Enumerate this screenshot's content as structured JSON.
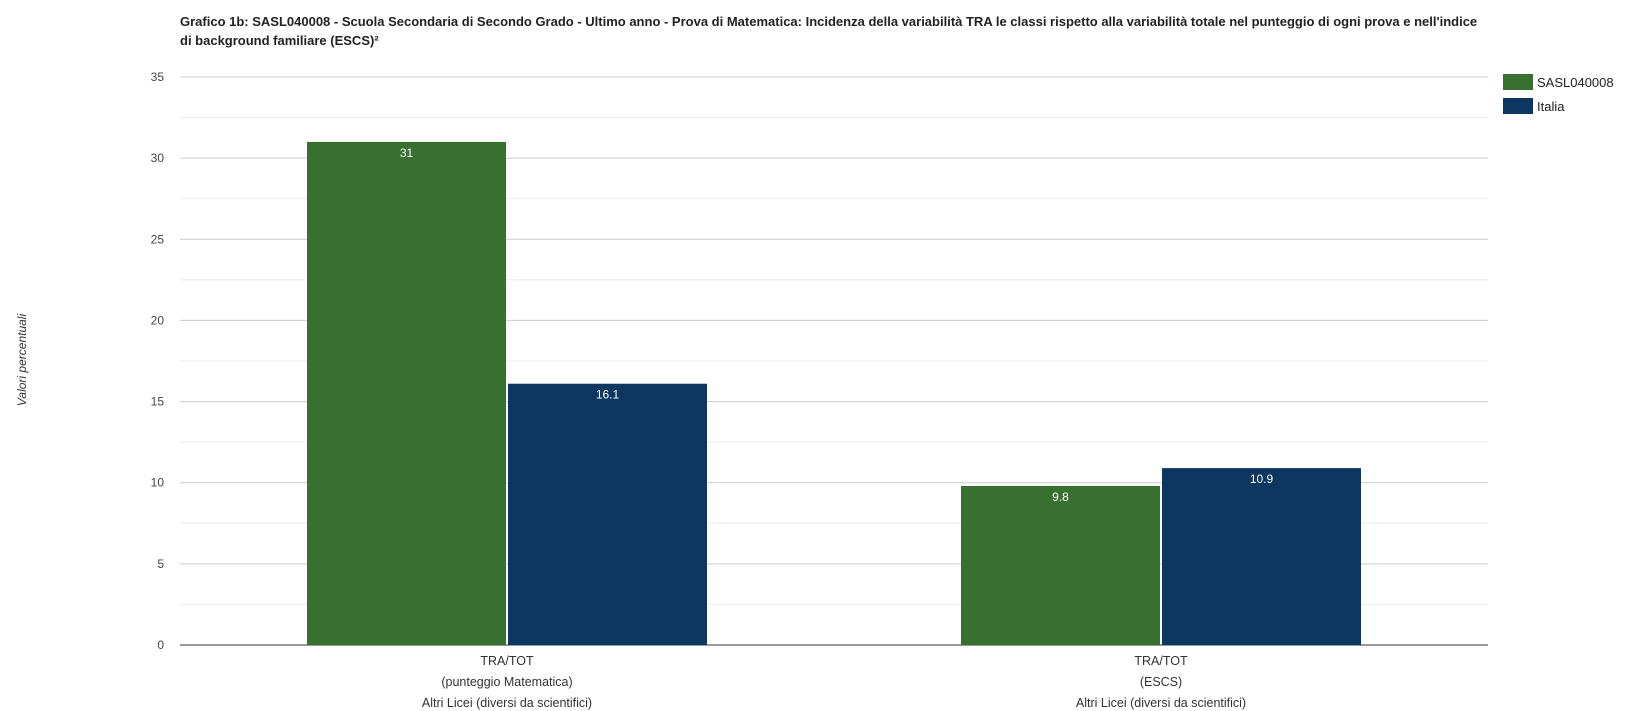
{
  "chart_data": {
    "type": "bar",
    "title": "Grafico 1b: SASL040008 - Scuola Secondaria di Secondo Grado - Ultimo anno - Prova di Matematica: Incidenza della variabilità TRA le classi rispetto alla variabilità totale nel punteggio di ogni prova e nell'indice di background familiare (ESCS)²",
    "ylabel": "Valori percentuali",
    "xlabel": "",
    "ylim": [
      0,
      35
    ],
    "yticks": [
      0,
      5,
      10,
      15,
      20,
      25,
      30,
      35
    ],
    "grid": true,
    "legend_position": "right",
    "categories": [
      [
        "TRA/TOT",
        "(punteggio Matematica)",
        "Altri Licei (diversi da scientifici)"
      ],
      [
        "TRA/TOT",
        "(ESCS)",
        "Altri Licei (diversi da scientifici)"
      ]
    ],
    "series": [
      {
        "name": "SASL040008",
        "color": "#38712F",
        "values": [
          31,
          9.8
        ],
        "labels": [
          "31",
          "9.8"
        ]
      },
      {
        "name": "Italia",
        "color": "#0C3760",
        "values": [
          16.1,
          10.9
        ],
        "labels": [
          "16.1",
          "10.9"
        ]
      }
    ]
  }
}
